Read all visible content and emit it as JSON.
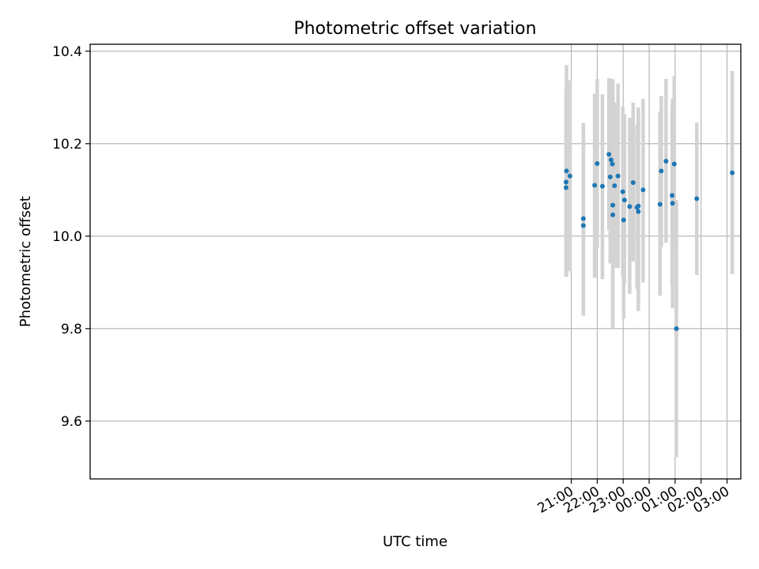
{
  "chart_data": {
    "type": "scatter",
    "title": "Photometric offset variation",
    "xlabel": "UTC time",
    "ylabel": "Photometric offset",
    "x_unit": "hours relative to 00:00 UTC",
    "xlim": [
      -21.53,
      3.53
    ],
    "ylim": [
      9.475,
      10.415
    ],
    "xticks": [
      {
        "value": -3,
        "label": "21:00"
      },
      {
        "value": -2,
        "label": "22:00"
      },
      {
        "value": -1,
        "label": "23:00"
      },
      {
        "value": 0,
        "label": "00:00"
      },
      {
        "value": 1,
        "label": "01:00"
      },
      {
        "value": 2,
        "label": "02:00"
      },
      {
        "value": 3,
        "label": "03:00"
      }
    ],
    "yticks": [
      {
        "value": 9.6,
        "label": "9.6"
      },
      {
        "value": 9.8,
        "label": "9.8"
      },
      {
        "value": 10.0,
        "label": "10.0"
      },
      {
        "value": 10.2,
        "label": "10.2"
      },
      {
        "value": 10.4,
        "label": "10.4"
      }
    ],
    "grid": true,
    "point_color": "#1f77b4",
    "errorbar_color": "#d3d3d3",
    "points": [
      {
        "x": "20:48",
        "y": 10.105,
        "err_low": 9.912,
        "err_high": 10.318
      },
      {
        "x": "20:48",
        "y": 10.117,
        "err_low": 9.912,
        "err_high": 10.318
      },
      {
        "x": "20:49",
        "y": 10.141,
        "err_low": 9.914,
        "err_high": 10.37
      },
      {
        "x": "20:57",
        "y": 10.13,
        "err_low": 9.924,
        "err_high": 10.337
      },
      {
        "x": "21:28",
        "y": 10.023,
        "err_low": 9.828,
        "err_high": 10.22
      },
      {
        "x": "21:28",
        "y": 10.038,
        "err_low": 9.829,
        "err_high": 10.245
      },
      {
        "x": "21:54",
        "y": 10.11,
        "err_low": 9.91,
        "err_high": 10.308
      },
      {
        "x": "22:00",
        "y": 10.157,
        "err_low": 9.975,
        "err_high": 10.34
      },
      {
        "x": "22:12",
        "y": 10.108,
        "err_low": 9.907,
        "err_high": 10.307
      },
      {
        "x": "22:27",
        "y": 10.177,
        "err_low": 10.013,
        "err_high": 10.342
      },
      {
        "x": "22:30",
        "y": 10.128,
        "err_low": 9.941,
        "err_high": 10.318
      },
      {
        "x": "22:32",
        "y": 10.165,
        "err_low": 10.008,
        "err_high": 10.33
      },
      {
        "x": "22:35",
        "y": 10.156,
        "err_low": 9.971,
        "err_high": 10.34
      },
      {
        "x": "22:36",
        "y": 10.067,
        "err_low": 9.8,
        "err_high": 10.338
      },
      {
        "x": "22:36",
        "y": 10.046,
        "err_low": 9.8,
        "err_high": 10.335
      },
      {
        "x": "22:40",
        "y": 10.109,
        "err_low": 9.932,
        "err_high": 10.289
      },
      {
        "x": "22:48",
        "y": 10.13,
        "err_low": 9.931,
        "err_high": 10.33
      },
      {
        "x": "22:59",
        "y": 10.096,
        "err_low": 9.912,
        "err_high": 10.281
      },
      {
        "x": "23:01",
        "y": 10.035,
        "err_low": 9.821,
        "err_high": 10.256
      },
      {
        "x": "23:03",
        "y": 10.078,
        "err_low": 9.896,
        "err_high": 10.264
      },
      {
        "x": "23:15",
        "y": 10.064,
        "err_low": 9.875,
        "err_high": 10.256
      },
      {
        "x": "23:23",
        "y": 10.116,
        "err_low": 9.945,
        "err_high": 10.289
      },
      {
        "x": "23:32",
        "y": 10.062,
        "err_low": 9.886,
        "err_high": 10.241
      },
      {
        "x": "23:35",
        "y": 10.065,
        "err_low": 9.855,
        "err_high": 10.265
      },
      {
        "x": "23:35",
        "y": 10.053,
        "err_low": 9.838,
        "err_high": 10.278
      },
      {
        "x": "23:46",
        "y": 10.1,
        "err_low": 9.9,
        "err_high": 10.297
      },
      {
        "x": "00:25",
        "y": 10.069,
        "err_low": 9.871,
        "err_high": 10.27
      },
      {
        "x": "00:28",
        "y": 10.141,
        "err_low": 9.976,
        "err_high": 10.303
      },
      {
        "x": "00:39",
        "y": 10.162,
        "err_low": 9.986,
        "err_high": 10.34
      },
      {
        "x": "00:53",
        "y": 10.088,
        "err_low": 9.892,
        "err_high": 10.283
      },
      {
        "x": "00:54",
        "y": 10.071,
        "err_low": 9.844,
        "err_high": 10.298
      },
      {
        "x": "00:58",
        "y": 10.156,
        "err_low": 9.966,
        "err_high": 10.346
      },
      {
        "x": "01:03",
        "y": 9.8,
        "err_low": 9.522,
        "err_high": 10.078
      },
      {
        "x": "01:50",
        "y": 10.081,
        "err_low": 9.916,
        "err_high": 10.246
      },
      {
        "x": "03:12",
        "y": 10.137,
        "err_low": 9.918,
        "err_high": 10.357
      }
    ]
  }
}
